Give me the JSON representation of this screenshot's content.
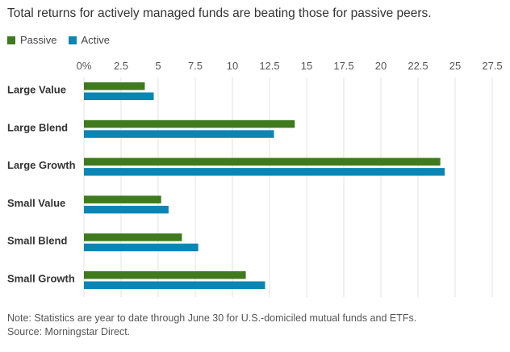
{
  "title": "Total returns for actively managed funds are beating those for passive peers.",
  "legend": [
    {
      "label": "Passive",
      "color": "#3f7a1e"
    },
    {
      "label": "Active",
      "color": "#0a86b5"
    }
  ],
  "note": {
    "line1": "Note: Statistics are year to date through June 30 for U.S.-domiciled mutual funds and ETFs.",
    "line2": "Source: Morningstar Direct."
  },
  "chart_data": {
    "type": "bar",
    "orientation": "horizontal",
    "title": "Total returns for actively managed funds are beating those for passive peers.",
    "categories": [
      "Large Value",
      "Large Blend",
      "Large Growth",
      "Small Value",
      "Small Blend",
      "Small Growth"
    ],
    "series": [
      {
        "name": "Passive",
        "color": "#3f7a1e",
        "values": [
          4.1,
          14.2,
          24.0,
          5.2,
          6.6,
          10.9
        ]
      },
      {
        "name": "Active",
        "color": "#0a86b5",
        "values": [
          4.7,
          12.8,
          24.3,
          5.7,
          7.7,
          12.2
        ]
      }
    ],
    "xlim": [
      0,
      27.5
    ],
    "xticks": [
      "0%",
      "2.5",
      "5",
      "7.5",
      "10",
      "12.5",
      "15",
      "17.5",
      "20",
      "22.5",
      "25",
      "27.5"
    ],
    "xtick_values": [
      0,
      2.5,
      5,
      7.5,
      10,
      12.5,
      15,
      17.5,
      20,
      22.5,
      25,
      27.5
    ],
    "grid": "vertical",
    "legend_position": "top-left"
  }
}
